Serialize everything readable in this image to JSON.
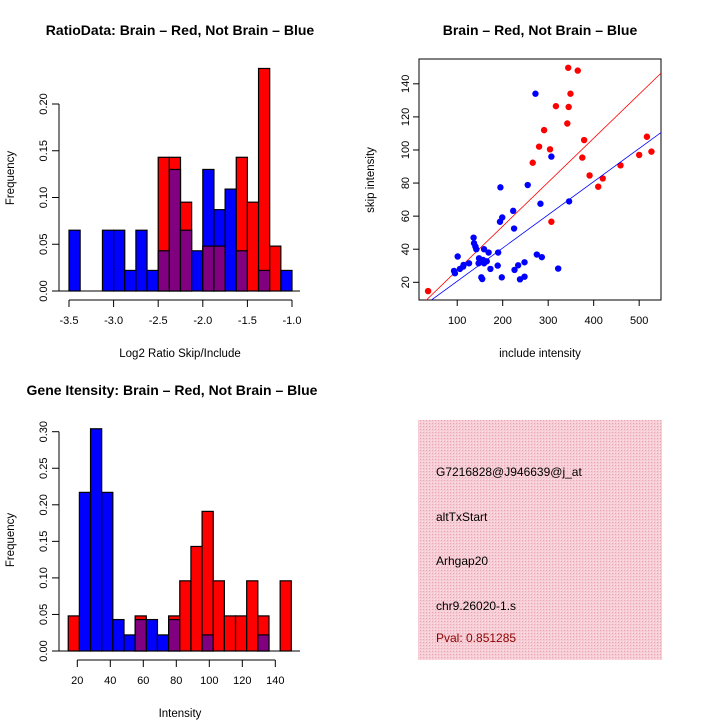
{
  "chart_data": [
    {
      "type": "bar",
      "title": "RatioData: Brain – Red, Not Brain – Blue",
      "xlabel": "Log2 Ratio Skip/Include",
      "ylabel": "Frequency",
      "bin_start": -3.5,
      "bin_width": 0.125,
      "xlim": [
        -3.5,
        -1.0
      ],
      "ylim": [
        0,
        0.24
      ],
      "xticks": [
        -3.5,
        -3.0,
        -2.5,
        -2.0,
        -1.5,
        -1.0
      ],
      "xtick_labels": [
        "-3.5",
        "-3.0",
        "-2.5",
        "-2.0",
        "-1.5",
        "-1.0"
      ],
      "yticks": [
        0,
        0.05,
        0.1,
        0.15,
        0.2
      ],
      "ytick_labels": [
        "0.00",
        "0.05",
        "0.10",
        "0.15",
        "0.20"
      ],
      "series": [
        {
          "name": "Brain",
          "color": "#ff0000",
          "values": [
            0,
            0,
            0,
            0,
            0,
            0,
            0,
            0,
            0.143,
            0.143,
            0.095,
            0,
            0.048,
            0.048,
            0,
            0.143,
            0.095,
            0.238,
            0.048,
            0
          ]
        },
        {
          "name": "Not Brain",
          "color": "#0000ff",
          "values": [
            0.065,
            0,
            0,
            0.065,
            0.065,
            0.022,
            0.065,
            0.022,
            0.043,
            0.13,
            0.065,
            0.043,
            0.13,
            0.087,
            0.109,
            0.043,
            0,
            0.022,
            0,
            0.022
          ]
        }
      ],
      "overlap_color": "#800080"
    },
    {
      "type": "scatter",
      "title": "Brain – Red, Not Brain – Blue",
      "xlabel": "include intensity",
      "ylabel": "skip intensity",
      "xlim": [
        16,
        548
      ],
      "ylim": [
        9.3,
        155
      ],
      "xticks": [
        100,
        200,
        300,
        400,
        500
      ],
      "xtick_labels": [
        "100",
        "200",
        "300",
        "400",
        "500"
      ],
      "yticks": [
        20,
        40,
        60,
        80,
        100,
        120,
        140
      ],
      "ytick_labels": [
        "20",
        "40",
        "60",
        "80",
        "100",
        "120",
        "140"
      ],
      "series": [
        {
          "name": "Brain",
          "color": "#ff0000",
          "fit": {
            "slope": 0.266,
            "intercept": 0.7
          },
          "points": [
            [
              36,
              14.7
            ],
            [
              344,
              149.7
            ],
            [
              365,
              148
            ],
            [
              349,
              134
            ],
            [
              317,
              126.5
            ],
            [
              345,
              126
            ],
            [
              342,
              116
            ],
            [
              291,
              112
            ],
            [
              379,
              106
            ],
            [
              280,
              102
            ],
            [
              304,
              100.4
            ],
            [
              266,
              92.3
            ],
            [
              375,
              95.4
            ],
            [
              517,
              108
            ],
            [
              500,
              97
            ],
            [
              527,
              99
            ],
            [
              459,
              90.7
            ],
            [
              391,
              84.6
            ],
            [
              420,
              82.8
            ],
            [
              410,
              77.8
            ],
            [
              307,
              56.6
            ]
          ]
        },
        {
          "name": "Not Brain",
          "color": "#0000ff",
          "fit": {
            "slope": 0.2006,
            "intercept": 0.6
          },
          "points": [
            [
              272,
              134
            ],
            [
              307,
              96
            ],
            [
              195,
              77.4
            ],
            [
              255,
              78.8
            ],
            [
              283,
              67.5
            ],
            [
              346,
              68.9
            ],
            [
              223,
              63.2
            ],
            [
              199,
              59.2
            ],
            [
              194,
              56.6
            ],
            [
              225,
              52.5
            ],
            [
              136,
              47
            ],
            [
              137,
              43.6
            ],
            [
              140,
              41.6
            ],
            [
              142,
              40
            ],
            [
              159,
              40
            ],
            [
              169,
              38
            ],
            [
              190,
              38
            ],
            [
              101,
              35.6
            ],
            [
              148,
              34.5
            ],
            [
              157,
              33.5
            ],
            [
              165,
              32.7
            ],
            [
              147,
              31.5
            ],
            [
              159,
              31.5
            ],
            [
              114,
              30.5
            ],
            [
              189,
              30.1
            ],
            [
              234,
              30.3
            ],
            [
              248,
              32.1
            ],
            [
              275,
              36.8
            ],
            [
              286,
              35.2
            ],
            [
              106,
              28.1
            ],
            [
              93,
              26.9
            ],
            [
              173,
              28.1
            ],
            [
              226,
              27.5
            ],
            [
              322,
              28.3
            ],
            [
              153,
              23
            ],
            [
              155,
              22
            ],
            [
              198,
              23
            ],
            [
              238,
              21.8
            ],
            [
              248,
              23.4
            ],
            [
              126,
              31.5
            ],
            [
              95,
              25.5
            ],
            [
              113,
              29.5
            ]
          ]
        }
      ]
    },
    {
      "type": "bar",
      "title": "Gene Itensity: Brain – Red, Not Brain – Blue",
      "xlabel": "Intensity",
      "ylabel": "Frequency",
      "bin_start": 14.5,
      "bin_width": 6.76,
      "xlim": [
        14.5,
        149.7
      ],
      "ylim": [
        0,
        0.31
      ],
      "xticks": [
        20,
        40,
        60,
        80,
        100,
        120,
        140
      ],
      "xtick_labels": [
        "20",
        "40",
        "60",
        "80",
        "100",
        "120",
        "140"
      ],
      "yticks": [
        0,
        0.05,
        0.1,
        0.15,
        0.2,
        0.25,
        0.3
      ],
      "ytick_labels": [
        "0.00",
        "0.05",
        "0.10",
        "0.15",
        "0.20",
        "0.25",
        "0.30"
      ],
      "series": [
        {
          "name": "Brain",
          "color": "#ff0000",
          "values": [
            0.048,
            0,
            0,
            0,
            0,
            0,
            0.048,
            0,
            0,
            0.048,
            0.096,
            0.143,
            0.191,
            0.096,
            0.048,
            0.048,
            0.096,
            0.048,
            0,
            0.096
          ]
        },
        {
          "name": "Not Brain",
          "color": "#0000ff",
          "values": [
            0,
            0.217,
            0.304,
            0.217,
            0.043,
            0.022,
            0.043,
            0.043,
            0.022,
            0.043,
            0,
            0,
            0.022,
            0,
            0,
            0,
            0,
            0.022,
            0,
            0
          ]
        }
      ],
      "overlap_color": "#800080"
    }
  ],
  "info_panel": {
    "background": "#f4c2cc",
    "probe_id": "G7216828@J946639@j_at",
    "event_type": "altTxStart",
    "gene": "Arhgap20",
    "location": "chr9.26020-1.s",
    "pval": "Pval: 0.851285",
    "pval_color": "#8b0000"
  }
}
